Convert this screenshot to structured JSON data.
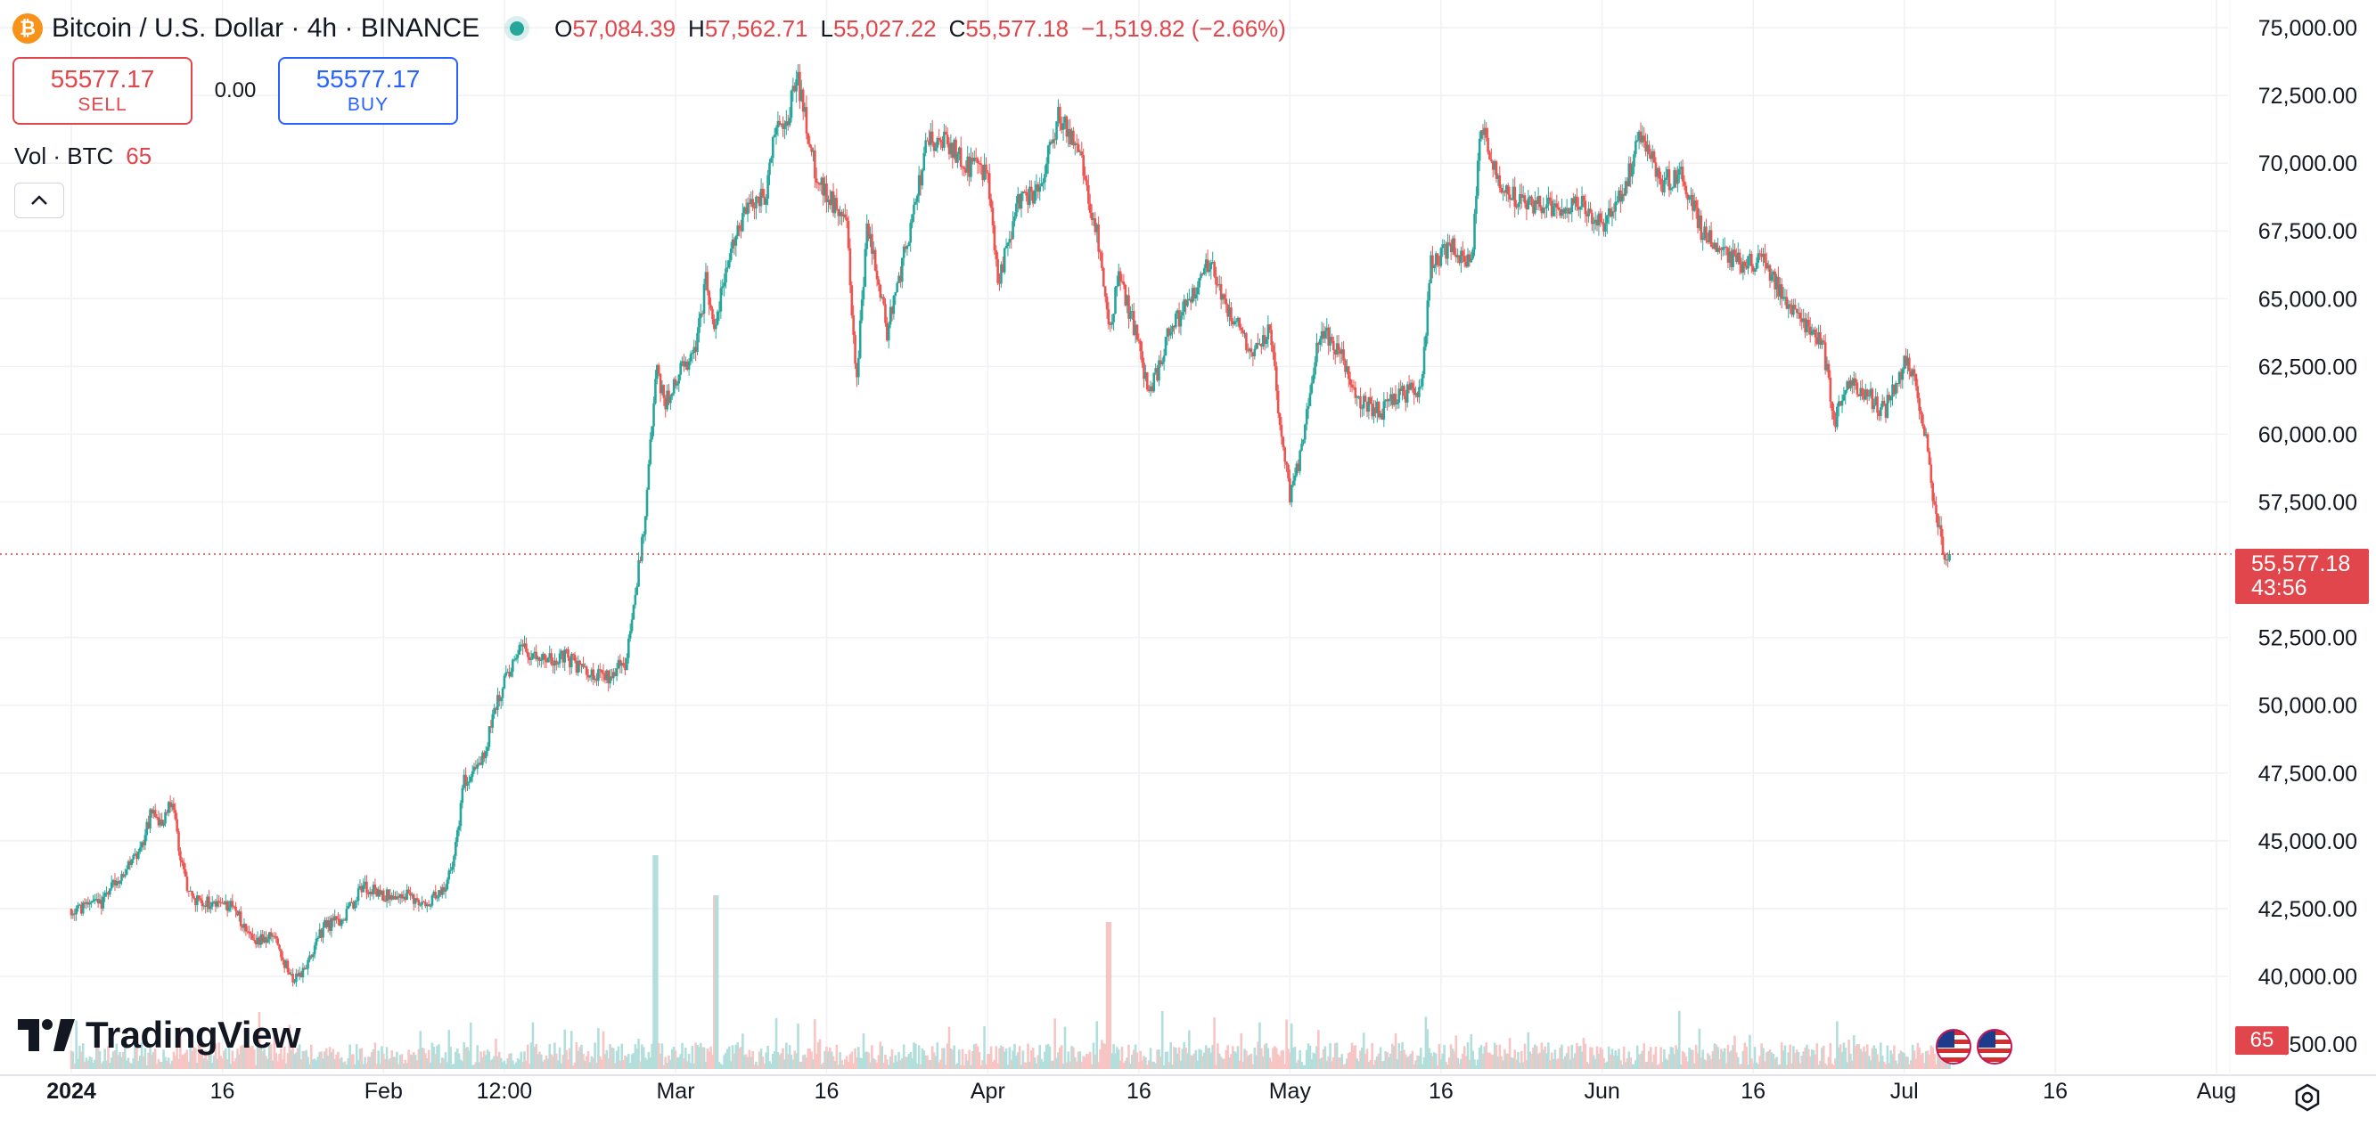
{
  "header": {
    "coin_icon": "bitcoin-icon",
    "coin_icon_glyph": "₿",
    "symbol_title": "Bitcoin / U.S. Dollar · 4h · BINANCE",
    "status_icon": "market-status-dot",
    "ohlc": {
      "o_key": "O",
      "o_val": "57,084.39",
      "h_key": "H",
      "h_val": "57,562.71",
      "l_key": "L",
      "l_val": "55,027.22",
      "c_key": "C",
      "c_val": "55,577.18",
      "change": "−1,519.82 (−2.66%)"
    }
  },
  "trade": {
    "sell_price": "55577.17",
    "sell_label": "SELL",
    "spread": "0.00",
    "buy_price": "55577.17",
    "buy_label": "BUY"
  },
  "volume_legend": {
    "label": "Vol · BTC",
    "value": "65"
  },
  "collapse_icon": "chevron-up-icon",
  "collapse_glyph": "^",
  "logo": {
    "text": "TradingView",
    "icon": "tradingview-logo-icon"
  },
  "current_price_tag": {
    "price": "55,577.18",
    "countdown": "43:56"
  },
  "volume_tag": "65",
  "event_icons": [
    "us-flag-icon",
    "us-flag-icon"
  ],
  "settings_icon": "settings-icon",
  "colors": {
    "up": "#26a69a",
    "down": "#ef5350",
    "up_volume": "#b2dfdb",
    "down_volume": "#f7c5c4",
    "grid": "#eff1f4",
    "text": "#131722",
    "price_tag": "#e0464b"
  },
  "chart_data": {
    "type": "candlestick",
    "title": "Bitcoin / U.S. Dollar · 4h · BINANCE",
    "interval": "4h",
    "exchange": "BINANCE",
    "y_axis": {
      "min": 37500,
      "max": 75000,
      "ticks": [
        75000,
        72500,
        70000,
        67500,
        65000,
        62500,
        60000,
        57500,
        52500,
        50000,
        47500,
        45000,
        42500,
        40000
      ],
      "tick_labels": [
        "75,000.00",
        "72,500.00",
        "70,000.00",
        "67,500.00",
        "65,000.00",
        "62,500.00",
        "60,000.00",
        "57,500.00",
        "52,500.00",
        "50,000.00",
        "47,500.00",
        "45,000.00",
        "42,500.00",
        "40,000.00"
      ],
      "partially_hidden_tick_label": "37,500.00"
    },
    "x_axis": {
      "start": "2024-01-01",
      "end": "2024-08-01",
      "ticks": [
        "2024-01-01",
        "2024-01-16",
        "2024-02-01",
        "2024-02-13",
        "2024-03-01",
        "2024-03-16",
        "2024-04-01",
        "2024-04-16",
        "2024-05-01",
        "2024-05-16",
        "2024-06-01",
        "2024-06-16",
        "2024-07-01",
        "2024-07-16",
        "2024-08-01"
      ],
      "tick_labels": [
        "2024",
        "16",
        "Feb",
        "12:00",
        "Mar",
        "16",
        "Apr",
        "16",
        "May",
        "16",
        "Jun",
        "16",
        "Jul",
        "16",
        "Aug"
      ]
    },
    "current_price": 55577.18,
    "last_ohlc": {
      "open": 57084.39,
      "high": 57562.71,
      "low": 55027.22,
      "close": 55577.18
    },
    "grid": true,
    "volume_pane": true,
    "price_path": [
      [
        "2024-01-01",
        42500
      ],
      [
        "2024-01-04",
        42700
      ],
      [
        "2024-01-06",
        43800
      ],
      [
        "2024-01-08",
        44700
      ],
      [
        "2024-01-09",
        46200
      ],
      [
        "2024-01-10",
        45500
      ],
      [
        "2024-01-11",
        46600
      ],
      [
        "2024-01-12",
        44000
      ],
      [
        "2024-01-13",
        42800
      ],
      [
        "2024-01-15",
        42700
      ],
      [
        "2024-01-17",
        42600
      ],
      [
        "2024-01-19",
        41300
      ],
      [
        "2024-01-21",
        41500
      ],
      [
        "2024-01-23",
        39800
      ],
      [
        "2024-01-24",
        40200
      ],
      [
        "2024-01-26",
        41800
      ],
      [
        "2024-01-28",
        42100
      ],
      [
        "2024-01-30",
        43300
      ],
      [
        "2024-02-01",
        43000
      ],
      [
        "2024-02-03",
        43100
      ],
      [
        "2024-02-05",
        42700
      ],
      [
        "2024-02-07",
        43100
      ],
      [
        "2024-02-08",
        44400
      ],
      [
        "2024-02-09",
        47200
      ],
      [
        "2024-02-11",
        48200
      ],
      [
        "2024-02-12",
        49800
      ],
      [
        "2024-02-14",
        51800
      ],
      [
        "2024-02-15",
        52100
      ],
      [
        "2024-02-17",
        51600
      ],
      [
        "2024-02-19",
        51800
      ],
      [
        "2024-02-21",
        51300
      ],
      [
        "2024-02-23",
        51000
      ],
      [
        "2024-02-25",
        51600
      ],
      [
        "2024-02-26",
        54200
      ],
      [
        "2024-02-27",
        57000
      ],
      [
        "2024-02-28",
        62400
      ],
      [
        "2024-02-29",
        61200
      ],
      [
        "2024-03-01",
        62000
      ],
      [
        "2024-03-03",
        63100
      ],
      [
        "2024-03-04",
        65700
      ],
      [
        "2024-03-05",
        63800
      ],
      [
        "2024-03-06",
        66300
      ],
      [
        "2024-03-08",
        68300
      ],
      [
        "2024-03-10",
        68900
      ],
      [
        "2024-03-11",
        71700
      ],
      [
        "2024-03-12",
        71500
      ],
      [
        "2024-03-13",
        73300
      ],
      [
        "2024-03-14",
        71400
      ],
      [
        "2024-03-15",
        69400
      ],
      [
        "2024-03-17",
        68400
      ],
      [
        "2024-03-18",
        67600
      ],
      [
        "2024-03-19",
        61900
      ],
      [
        "2024-03-20",
        67800
      ],
      [
        "2024-03-22",
        63800
      ],
      [
        "2024-03-24",
        67100
      ],
      [
        "2024-03-26",
        70800
      ],
      [
        "2024-03-28",
        70800
      ],
      [
        "2024-03-30",
        69900
      ],
      [
        "2024-04-01",
        69600
      ],
      [
        "2024-04-02",
        65600
      ],
      [
        "2024-04-04",
        68500
      ],
      [
        "2024-04-06",
        69000
      ],
      [
        "2024-04-08",
        71700
      ],
      [
        "2024-04-10",
        70600
      ],
      [
        "2024-04-12",
        67100
      ],
      [
        "2024-04-13",
        63900
      ],
      [
        "2024-04-14",
        65700
      ],
      [
        "2024-04-16",
        63400
      ],
      [
        "2024-04-17",
        61300
      ],
      [
        "2024-04-19",
        63800
      ],
      [
        "2024-04-21",
        64900
      ],
      [
        "2024-04-23",
        66400
      ],
      [
        "2024-04-25",
        64500
      ],
      [
        "2024-04-27",
        63100
      ],
      [
        "2024-04-29",
        63800
      ],
      [
        "2024-04-30",
        60600
      ],
      [
        "2024-05-01",
        57700
      ],
      [
        "2024-05-02",
        59100
      ],
      [
        "2024-05-04",
        63800
      ],
      [
        "2024-05-06",
        63100
      ],
      [
        "2024-05-08",
        61200
      ],
      [
        "2024-05-10",
        60800
      ],
      [
        "2024-05-12",
        61500
      ],
      [
        "2024-05-14",
        61600
      ],
      [
        "2024-05-15",
        66300
      ],
      [
        "2024-05-17",
        67000
      ],
      [
        "2024-05-19",
        66300
      ],
      [
        "2024-05-20",
        71400
      ],
      [
        "2024-05-22",
        69100
      ],
      [
        "2024-05-24",
        68500
      ],
      [
        "2024-05-26",
        68500
      ],
      [
        "2024-05-28",
        68300
      ],
      [
        "2024-05-30",
        68400
      ],
      [
        "2024-06-01",
        67700
      ],
      [
        "2024-06-03",
        69000
      ],
      [
        "2024-06-05",
        71100
      ],
      [
        "2024-06-07",
        69300
      ],
      [
        "2024-06-09",
        69600
      ],
      [
        "2024-06-11",
        67300
      ],
      [
        "2024-06-13",
        66800
      ],
      [
        "2024-06-15",
        66200
      ],
      [
        "2024-06-17",
        66500
      ],
      [
        "2024-06-19",
        65100
      ],
      [
        "2024-06-21",
        64100
      ],
      [
        "2024-06-23",
        63200
      ],
      [
        "2024-06-24",
        60300
      ],
      [
        "2024-06-25",
        61800
      ],
      [
        "2024-06-27",
        61600
      ],
      [
        "2024-06-29",
        60800
      ],
      [
        "2024-07-01",
        62700
      ],
      [
        "2024-07-02",
        62100
      ],
      [
        "2024-07-03",
        60200
      ],
      [
        "2024-07-04",
        57100
      ],
      [
        "2024-07-05",
        55577.18
      ]
    ],
    "volume_spikes": [
      [
        "2024-02-28",
        8
      ],
      [
        "2024-03-05",
        6.5
      ],
      [
        "2024-04-13",
        5.5
      ]
    ]
  }
}
